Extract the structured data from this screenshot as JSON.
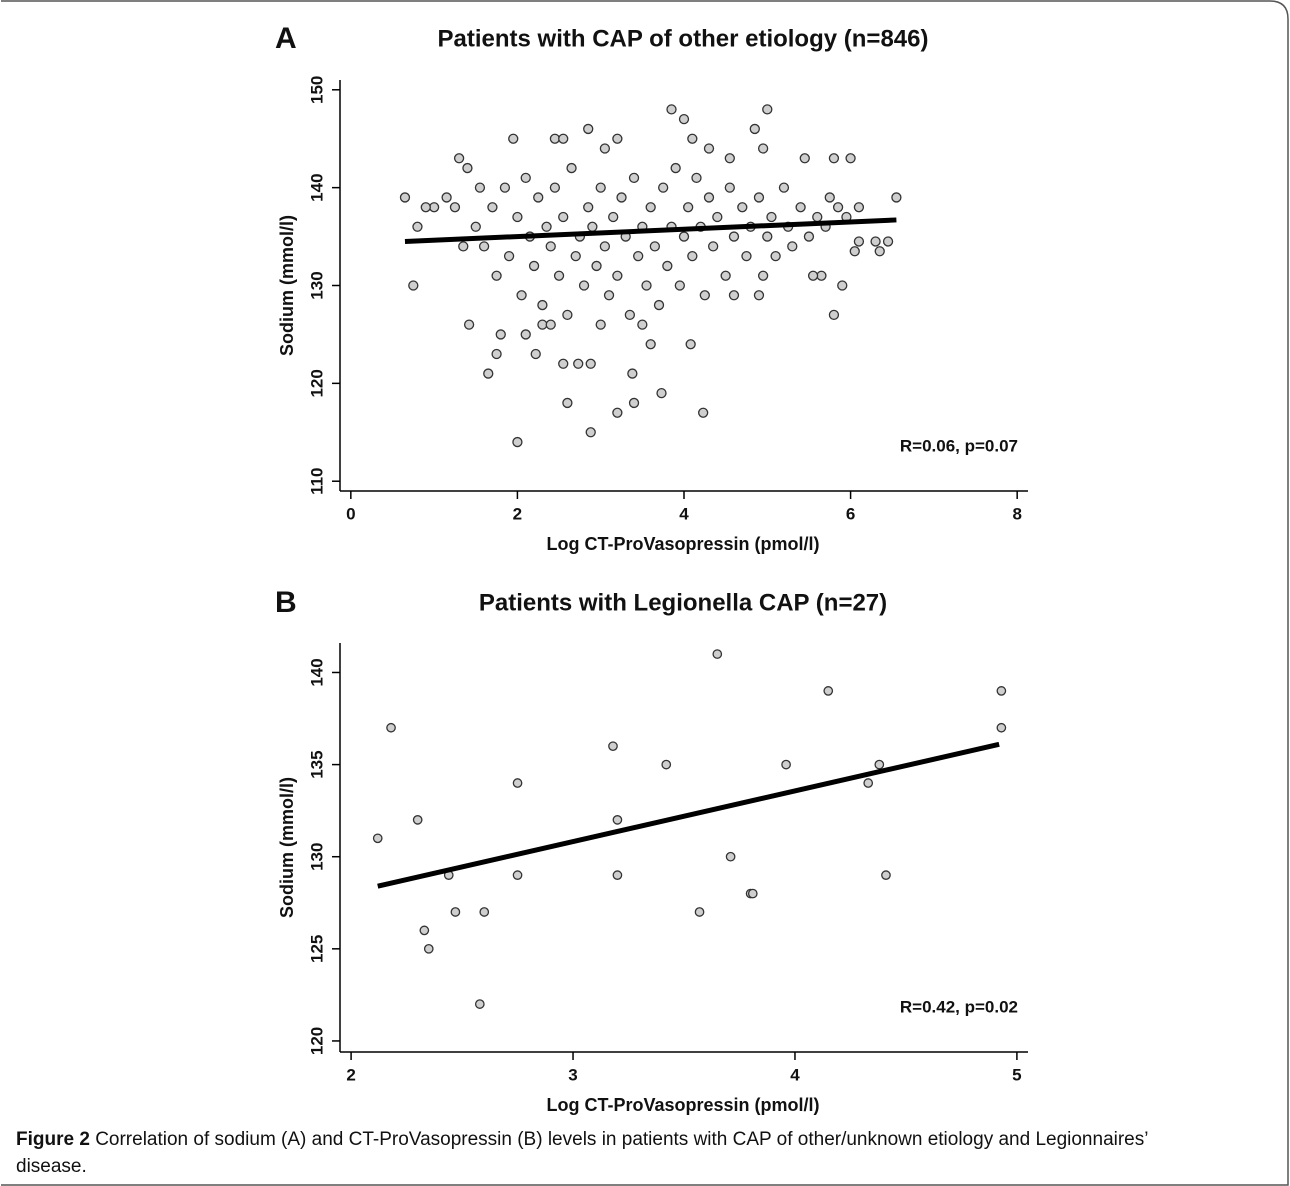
{
  "chart_data": [
    {
      "type": "scatter",
      "panel": "A",
      "title": "Patients with CAP of other etiology (n=846)",
      "xlabel": "Log CT-ProVasopressin  (pmol/l)",
      "ylabel": "Sodium (mmol/l)",
      "annotation": "R=0.06, p=0.07",
      "xlim": [
        -0.13,
        8.13
      ],
      "xticks": [
        0,
        2,
        4,
        6,
        8
      ],
      "ylim": [
        109,
        151
      ],
      "yticks": [
        110,
        120,
        130,
        140,
        150
      ],
      "color": "#cfcfcf",
      "x": [
        2.0,
        2.88,
        3.2,
        4.23,
        2.6,
        3.4,
        3.73,
        1.65,
        3.38,
        1.75,
        2.22,
        2.55,
        2.73,
        2.88,
        3.6,
        4.08,
        1.42,
        1.8,
        2.1,
        2.3,
        0.75,
        5.8,
        5.9,
        5.65,
        1.0,
        0.65,
        0.8,
        0.9,
        1.15,
        1.3,
        1.4,
        1.95,
        2.45,
        2.55,
        2.85,
        3.05,
        3.2,
        3.85,
        4.0,
        5.0,
        4.85,
        4.95,
        4.55,
        4.3,
        4.1,
        5.45,
        5.8,
        6.0,
        6.55,
        6.45,
        6.3,
        6.1,
        6.05,
        6.35,
        6.1,
        5.95,
        1.5,
        1.6,
        1.7,
        1.75,
        1.85,
        1.9,
        2.0,
        2.05,
        2.1,
        2.15,
        2.2,
        2.25,
        2.3,
        2.35,
        2.4,
        2.45,
        2.5,
        2.55,
        2.6,
        2.65,
        2.7,
        2.75,
        2.8,
        2.85,
        2.9,
        2.95,
        3.0,
        3.05,
        3.1,
        3.15,
        3.2,
        3.25,
        3.3,
        3.35,
        3.4,
        3.45,
        3.5,
        3.55,
        3.6,
        3.65,
        3.7,
        3.75,
        3.8,
        3.85,
        3.9,
        3.95,
        4.0,
        4.05,
        4.1,
        4.15,
        4.2,
        4.25,
        4.3,
        4.35,
        4.4,
        4.5,
        4.55,
        4.6,
        4.7,
        4.75,
        4.8,
        4.9,
        4.95,
        5.0,
        5.05,
        5.1,
        5.2,
        5.25,
        5.3,
        5.4,
        5.5,
        5.55,
        5.6,
        5.7,
        5.75,
        5.85,
        1.55,
        1.35,
        1.25,
        3.0,
        3.5,
        2.4,
        4.6,
        4.9
      ],
      "y": [
        114,
        115,
        117,
        117,
        118,
        118,
        119,
        121,
        121,
        123,
        123,
        122,
        122,
        122,
        124,
        124,
        126,
        125,
        125,
        126,
        130,
        127,
        130,
        131,
        138,
        139,
        136,
        138,
        139,
        143,
        142,
        145,
        145,
        145,
        146,
        144,
        145,
        148,
        147,
        148,
        146,
        144,
        143,
        144,
        145,
        143,
        143,
        143,
        139,
        134.5,
        134.5,
        134.5,
        133.5,
        133.5,
        138,
        137,
        136,
        134,
        138,
        131,
        140,
        133,
        137,
        129,
        141,
        135,
        132,
        139,
        128,
        136,
        134,
        140,
        131,
        137,
        127,
        142,
        133,
        135,
        130,
        138,
        136,
        132,
        140,
        134,
        129,
        137,
        131,
        139,
        135,
        127,
        141,
        133,
        136,
        130,
        138,
        134,
        128,
        140,
        132,
        136,
        142,
        130,
        135,
        138,
        133,
        141,
        136,
        129,
        139,
        134,
        137,
        131,
        140,
        135,
        138,
        133,
        136,
        139,
        131,
        135,
        137,
        133,
        140,
        136,
        134,
        138,
        135,
        131,
        137,
        136,
        139,
        138,
        140,
        134,
        138,
        126,
        126,
        126,
        129,
        129
      ],
      "fit": {
        "x": [
          0.65,
          6.55
        ],
        "y": [
          134.5,
          136.7
        ]
      }
    },
    {
      "type": "scatter",
      "panel": "B",
      "title": "Patients with Legionella CAP (n=27)",
      "xlabel": "Log CT-ProVasopressin  (pmol/l)",
      "ylabel": "Sodium (mmol/l)",
      "annotation": "R=0.42, p=0.02",
      "xlim": [
        1.95,
        5.05
      ],
      "xticks": [
        2,
        3,
        4,
        5
      ],
      "ylim": [
        119.4,
        141.6
      ],
      "yticks": [
        120,
        125,
        130,
        135,
        140
      ],
      "color": "#cfcfcf",
      "x": [
        2.12,
        2.18,
        2.3,
        2.33,
        2.35,
        2.44,
        2.47,
        2.58,
        2.6,
        2.75,
        2.75,
        3.18,
        3.2,
        3.2,
        3.42,
        3.57,
        3.65,
        3.71,
        3.8,
        3.81,
        3.96,
        4.15,
        4.33,
        4.38,
        4.41,
        4.93,
        4.93
      ],
      "y": [
        131,
        137,
        132,
        126,
        125,
        129,
        127,
        122,
        127,
        134,
        129,
        136,
        132,
        129,
        135,
        127,
        141,
        130,
        128,
        128,
        135,
        139,
        134,
        135,
        129,
        139,
        137
      ],
      "fit": {
        "x": [
          2.12,
          4.92
        ],
        "y": [
          128.4,
          136.1
        ]
      }
    }
  ],
  "caption": {
    "label": "Figure 2",
    "text": "Correlation of sodium (A) and CT-ProVasopressin (B) levels in patients with CAP of other/unknown etiology and Legionnaires’ disease."
  }
}
